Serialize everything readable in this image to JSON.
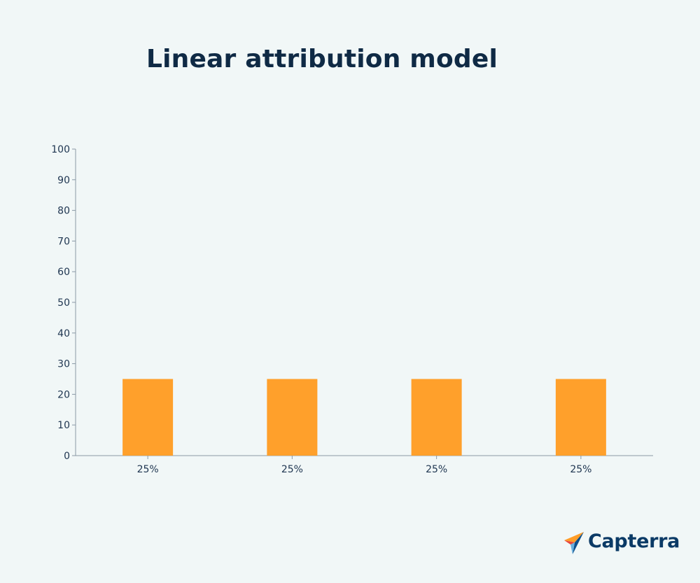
{
  "chart_data": {
    "type": "bar",
    "title": "Linear attribution model",
    "categories": [
      "25%",
      "25%",
      "25%",
      "25%"
    ],
    "values": [
      25,
      25,
      25,
      25
    ],
    "xlabel": "",
    "ylabel": "",
    "ylim": [
      0,
      100
    ],
    "yticks": [
      "0",
      "10",
      "20",
      "30",
      "40",
      "50",
      "60",
      "70",
      "80",
      "90",
      "100"
    ],
    "grid": false,
    "bar_color": "#ffa02b",
    "axis_color": "#8a99a6"
  },
  "brand": {
    "name": "Capterra",
    "icon": "capterra-arrow-icon",
    "text_color": "#0b3a66"
  }
}
